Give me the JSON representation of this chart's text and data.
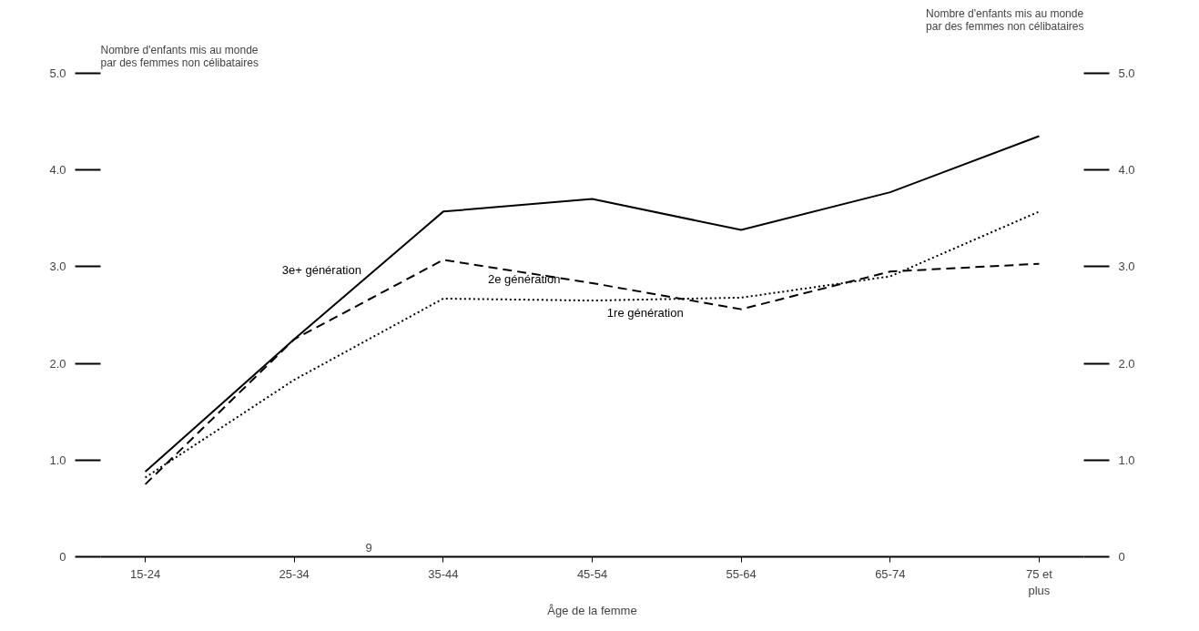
{
  "chart_data": {
    "type": "line",
    "xlabel": "Âge de la femme",
    "ylabel": "Nombre d'enfants mis au monde\npar des femmes non célibataires",
    "y2label": "Nombre d'enfants mis au monde\npar des femmes non célibataires",
    "categories": [
      "15-24",
      "25-34",
      "35-44",
      "45-54",
      "55-64",
      "65-74",
      "75 et\nplus"
    ],
    "series": [
      {
        "name": "3e+ génération",
        "color": "#000000",
        "line_style": "solid",
        "values": [
          0.88,
          2.25,
          3.57,
          3.7,
          3.38,
          3.77,
          4.35
        ]
      },
      {
        "name": "2e génération",
        "color": "#000000",
        "line_style": "dashed",
        "values": [
          0.75,
          2.25,
          3.07,
          2.83,
          2.56,
          2.95,
          3.03
        ]
      },
      {
        "name": "1re génération",
        "color": "#000000",
        "line_style": "dotted",
        "values": [
          0.82,
          1.83,
          2.67,
          2.65,
          2.68,
          2.9,
          3.57
        ]
      }
    ],
    "ylim": [
      0,
      5
    ],
    "yticks": [
      0,
      {
        "value": 1,
        "label": "1.0"
      },
      {
        "value": 2,
        "label": "2.0"
      },
      {
        "value": 3,
        "label": "3.0"
      },
      {
        "value": 4,
        "label": "4.0"
      },
      {
        "value": 5,
        "label": "5.0"
      }
    ],
    "y2lim": [
      0,
      5
    ],
    "y2ticks": [
      0,
      {
        "value": 1,
        "label": "1.0"
      },
      {
        "value": 2,
        "label": "2.0"
      },
      {
        "value": 3,
        "label": "3.0"
      },
      {
        "value": 4,
        "label": "4.0"
      },
      {
        "value": 5,
        "label": "5.0"
      }
    ],
    "grid": false,
    "marker": "none",
    "annotations": [
      "9"
    ]
  }
}
